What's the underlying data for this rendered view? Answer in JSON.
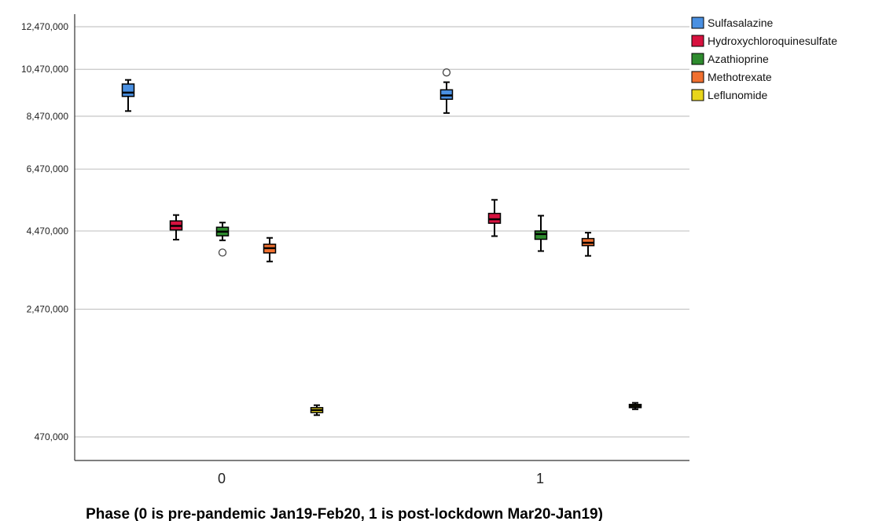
{
  "chart_data": {
    "type": "box",
    "title": "",
    "xlabel": "Phase (0 is pre-pandemic Jan19-Feb20, 1 is post-lockdown Mar20-Jan19)",
    "ylabel": "",
    "y_scale": "sqrt",
    "ylim": [
      0,
      13500000
    ],
    "y_ticks": [
      470000,
      2470000,
      4470000,
      6470000,
      8470000,
      10470000,
      12470000
    ],
    "y_tick_labels": [
      "470,000",
      "2,470,000",
      "4,470,000",
      "6,470,000",
      "8,470,000",
      "10,470,000",
      "12,470,000"
    ],
    "grid": "horizontal",
    "categories": [
      "0",
      "1"
    ],
    "legend_position": "top-right",
    "series": [
      {
        "name": "Sulfasalazine",
        "color": "#4a90e2",
        "boxes": [
          {
            "whisker_low": 8680000,
            "q1": 9290000,
            "median": 9450000,
            "q3": 9820000,
            "whisker_high": 10000000,
            "outliers": []
          },
          {
            "whisker_low": 8600000,
            "q1": 9170000,
            "median": 9330000,
            "q3": 9570000,
            "whisker_high": 9900000,
            "outliers": [
              10330000
            ]
          }
        ]
      },
      {
        "name": "Hydroxychloroquinesulfate",
        "color": "#d7123f",
        "boxes": [
          {
            "whisker_low": 4220000,
            "q1": 4500000,
            "median": 4620000,
            "q3": 4770000,
            "whisker_high": 4950000,
            "outliers": []
          },
          {
            "whisker_low": 4320000,
            "q1": 4700000,
            "median": 4820000,
            "q3": 5000000,
            "whisker_high": 5430000,
            "outliers": []
          }
        ]
      },
      {
        "name": "Azathioprine",
        "color": "#2e8b2e",
        "boxes": [
          {
            "whisker_low": 4200000,
            "q1": 4330000,
            "median": 4450000,
            "q3": 4580000,
            "whisker_high": 4720000,
            "outliers": [
              3860000
            ]
          },
          {
            "whisker_low": 3900000,
            "q1": 4230000,
            "median": 4380000,
            "q3": 4470000,
            "whisker_high": 4930000,
            "outliers": []
          }
        ]
      },
      {
        "name": "Methotrexate",
        "color": "#f07030",
        "boxes": [
          {
            "whisker_low": 3620000,
            "q1": 3850000,
            "median": 3980000,
            "q3": 4090000,
            "whisker_high": 4270000,
            "outliers": []
          },
          {
            "whisker_low": 3770000,
            "q1": 4050000,
            "median": 4130000,
            "q3": 4250000,
            "whisker_high": 4420000,
            "outliers": []
          }
        ]
      },
      {
        "name": "Leflunomide",
        "color": "#e8d51c",
        "boxes": [
          {
            "whisker_low": 700000,
            "q1": 730000,
            "median": 760000,
            "q3": 790000,
            "whisker_high": 820000,
            "outliers": []
          },
          {
            "whisker_low": 770000,
            "q1": 790000,
            "median": 810000,
            "q3": 830000,
            "whisker_high": 850000,
            "outliers": []
          }
        ]
      }
    ]
  }
}
